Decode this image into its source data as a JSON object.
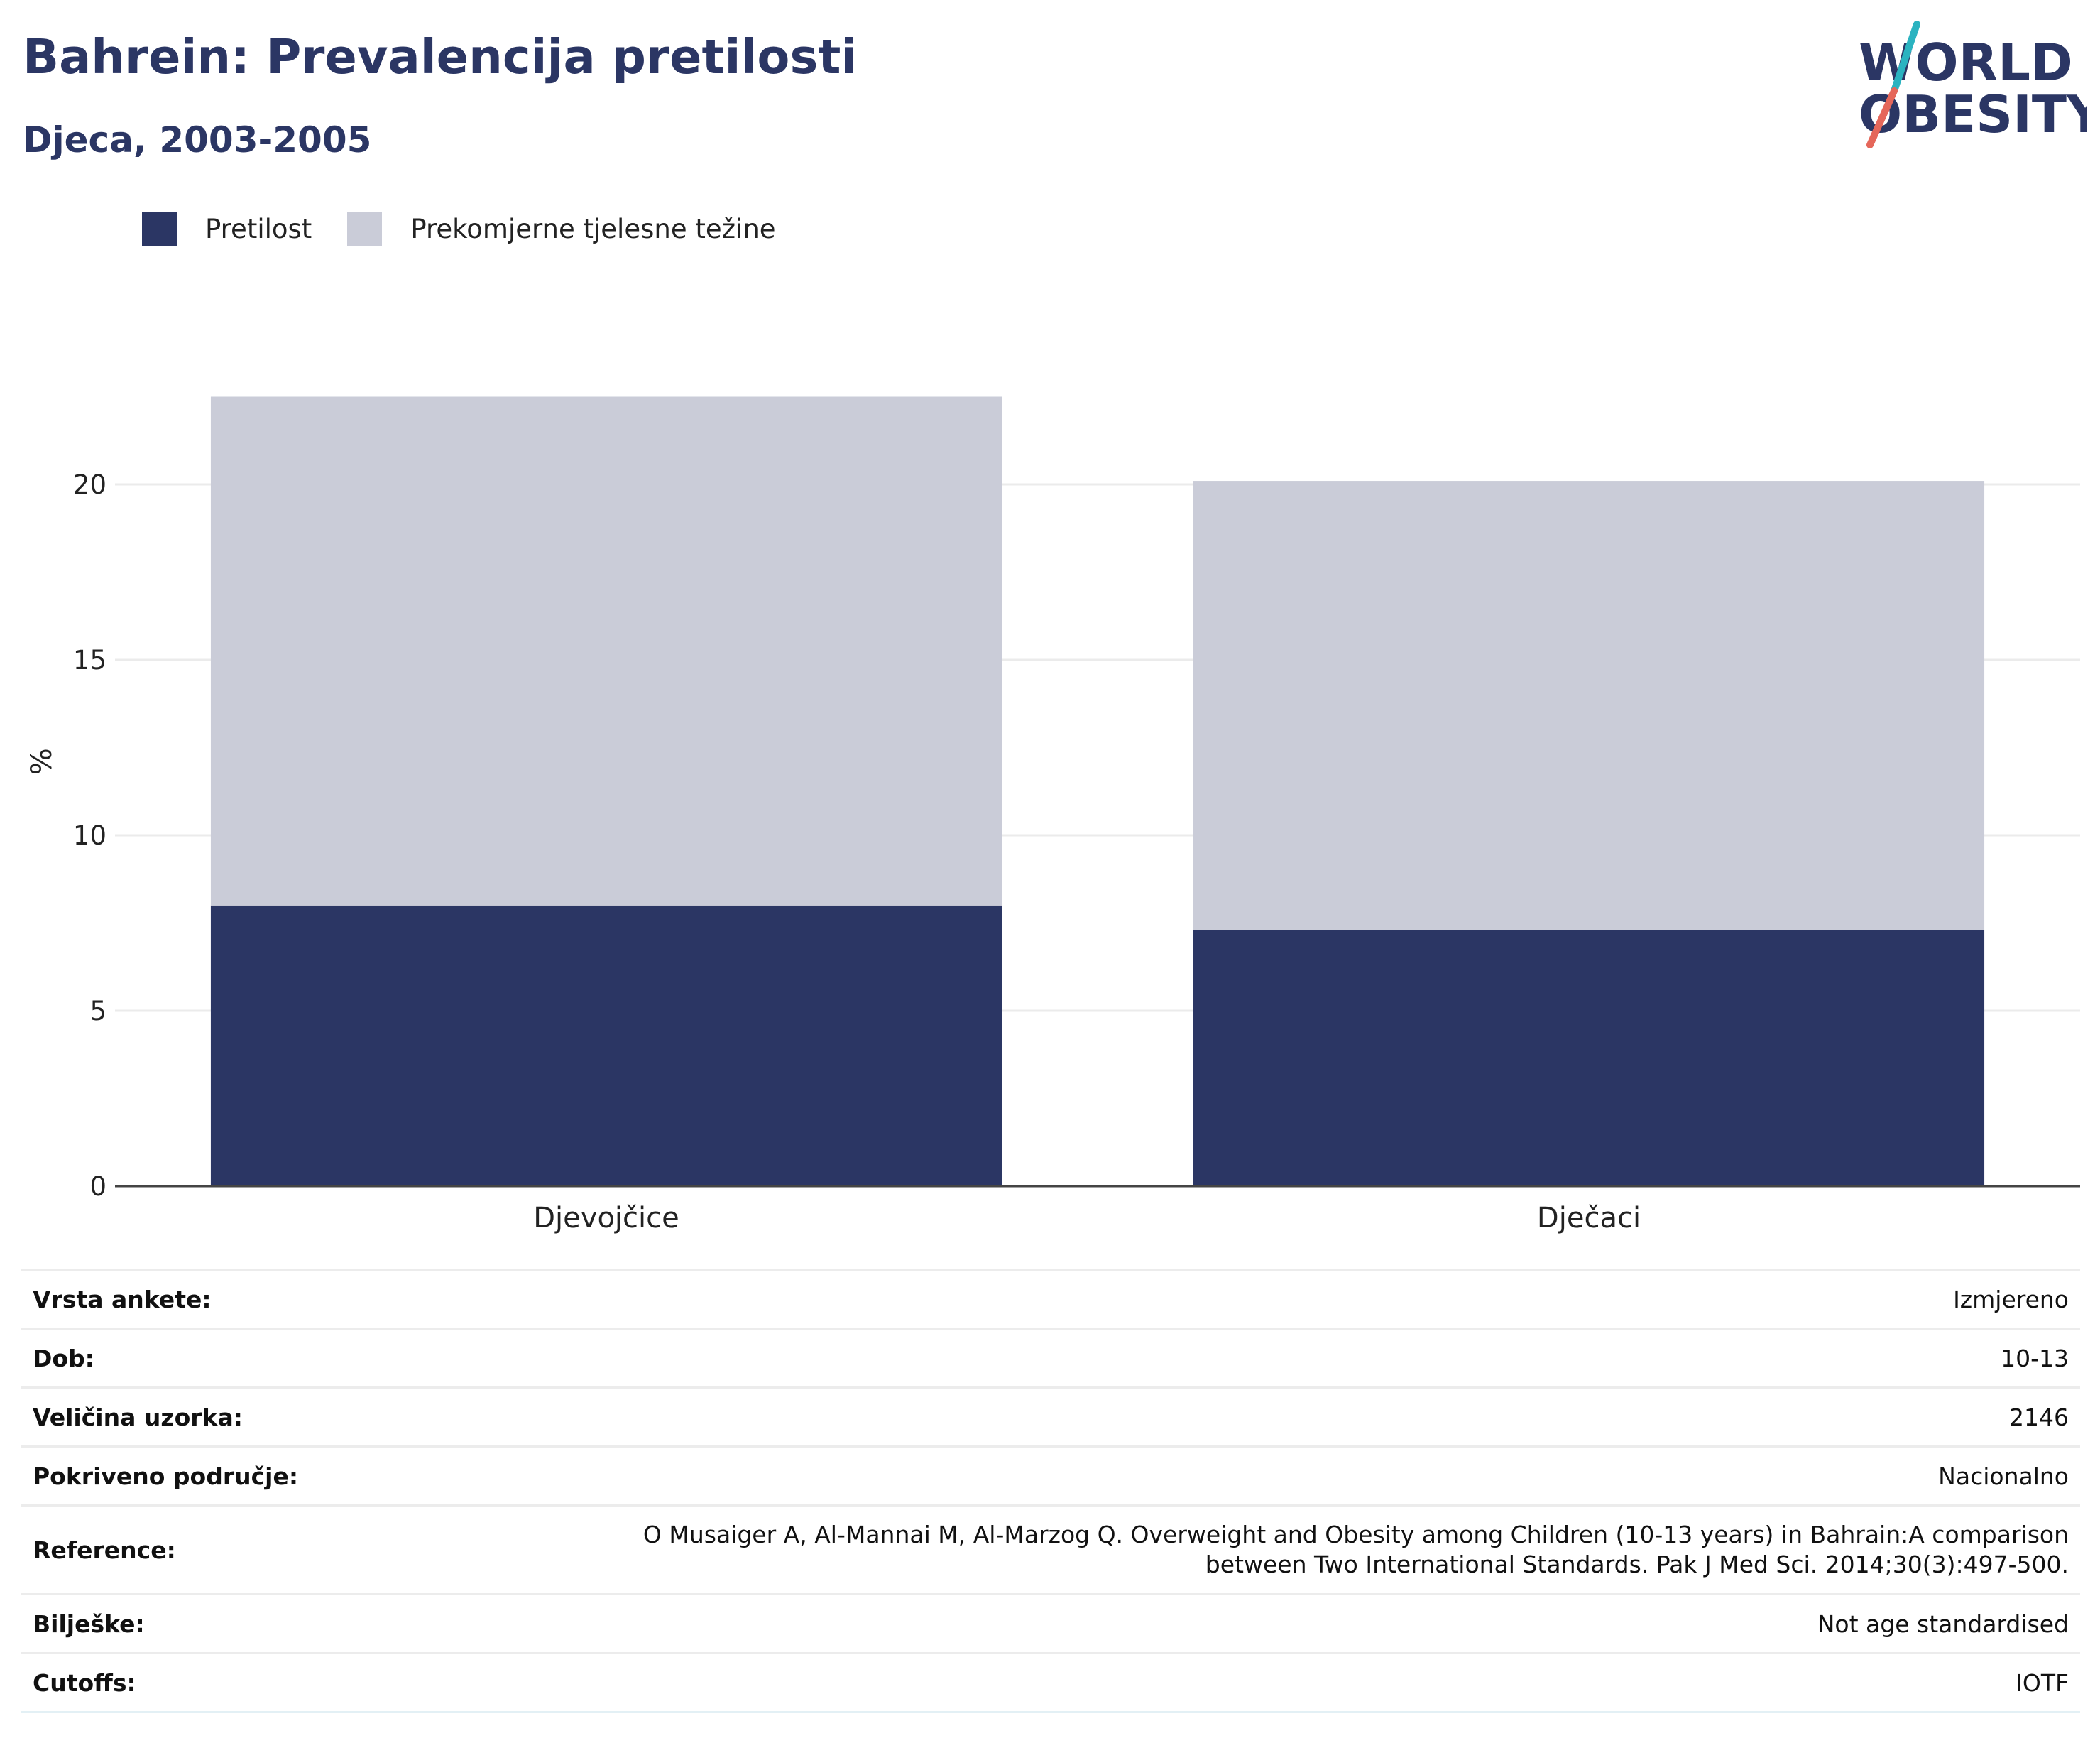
{
  "header": {
    "title": "Bahrein: Prevalencija pretilosti",
    "subtitle": "Djeca, 2003-2005"
  },
  "logo": {
    "line1": "WORLD",
    "line2": "OBESITY",
    "colors": {
      "text": "#2b3664",
      "slash_top": "#2bb3c0",
      "slash_bottom": "#e5675a"
    }
  },
  "legend": [
    {
      "label": "Pretilost",
      "color": "#2b3664"
    },
    {
      "label": "Prekomjerne tjelesne težine",
      "color": "#caccd8"
    }
  ],
  "chart_data": {
    "type": "bar",
    "stacked": true,
    "categories": [
      "Djevojčice",
      "Dječaci"
    ],
    "series": [
      {
        "name": "Pretilost",
        "values": [
          8.0,
          7.3
        ],
        "color": "#2b3664"
      },
      {
        "name": "Prekomjerne tjelesne težine",
        "values": [
          14.5,
          12.8
        ],
        "color": "#caccd8"
      }
    ],
    "ylabel": "%",
    "xlabel": "",
    "ylim": [
      0,
      22.5
    ],
    "yticks": [
      0,
      5,
      10,
      15,
      20
    ],
    "grid": true,
    "legend_position": "top-left"
  },
  "meta": [
    {
      "key": "Vrsta ankete:",
      "value": "Izmjereno"
    },
    {
      "key": "Dob:",
      "value": "10-13"
    },
    {
      "key": "Veličina uzorka:",
      "value": "2146"
    },
    {
      "key": "Pokriveno područje:",
      "value": "Nacionalno"
    },
    {
      "key": "Reference:",
      "value": "O Musaiger A, Al-Mannai M, Al-Marzog Q. Overweight and Obesity among Children (10-13 years) in Bahrain:A comparison between Two International Standards. Pak J Med Sci. 2014;30(3):497-500."
    },
    {
      "key": "Bilješke:",
      "value": "Not age standardised"
    },
    {
      "key": "Cutoffs:",
      "value": "IOTF"
    }
  ]
}
